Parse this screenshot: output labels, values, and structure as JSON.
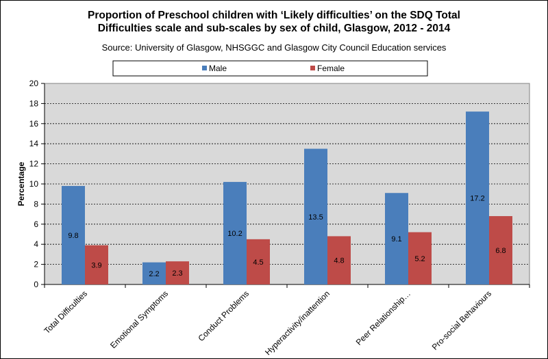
{
  "chart_data": {
    "type": "bar",
    "title_line1": "Proportion of Preschool children with ‘Likely difficulties’ on the SDQ Total",
    "title_line2": "Difficulties scale and sub-scales by sex of child, Glasgow, 2012 - 2014",
    "subtitle": "Source: University of Glasgow, NHSGGC and Glasgow City Council Education services",
    "categories": [
      "Total Difficulties",
      "Emotional Symptoms",
      "Conduct Problems",
      "Hyperactivity/inattention",
      "Peer Relationship…",
      "Pro-social Behaviours"
    ],
    "series": [
      {
        "name": "Male",
        "values": [
          9.8,
          2.2,
          10.2,
          13.5,
          9.1,
          17.2
        ],
        "labels": [
          "9.8",
          "2.2",
          "10.2",
          "13.5",
          "9.1",
          "17.2"
        ]
      },
      {
        "name": "Female",
        "values": [
          3.9,
          2.3,
          4.5,
          4.8,
          5.2,
          6.8
        ],
        "labels": [
          "3.9",
          "2.3",
          "4.5",
          "4.8",
          "5.2",
          "6.8"
        ]
      }
    ],
    "ylabel": "Percentage",
    "xlabel": "",
    "ylim": [
      0,
      20
    ],
    "yticks": [
      "0",
      "2",
      "4",
      "6",
      "8",
      "10",
      "12",
      "14",
      "16",
      "18",
      "20"
    ],
    "grid": true,
    "legend_position": "top",
    "colors": {
      "Male": "#4a7ebb",
      "Female": "#be4b48",
      "plot_bg": "#d9d9d9"
    }
  }
}
